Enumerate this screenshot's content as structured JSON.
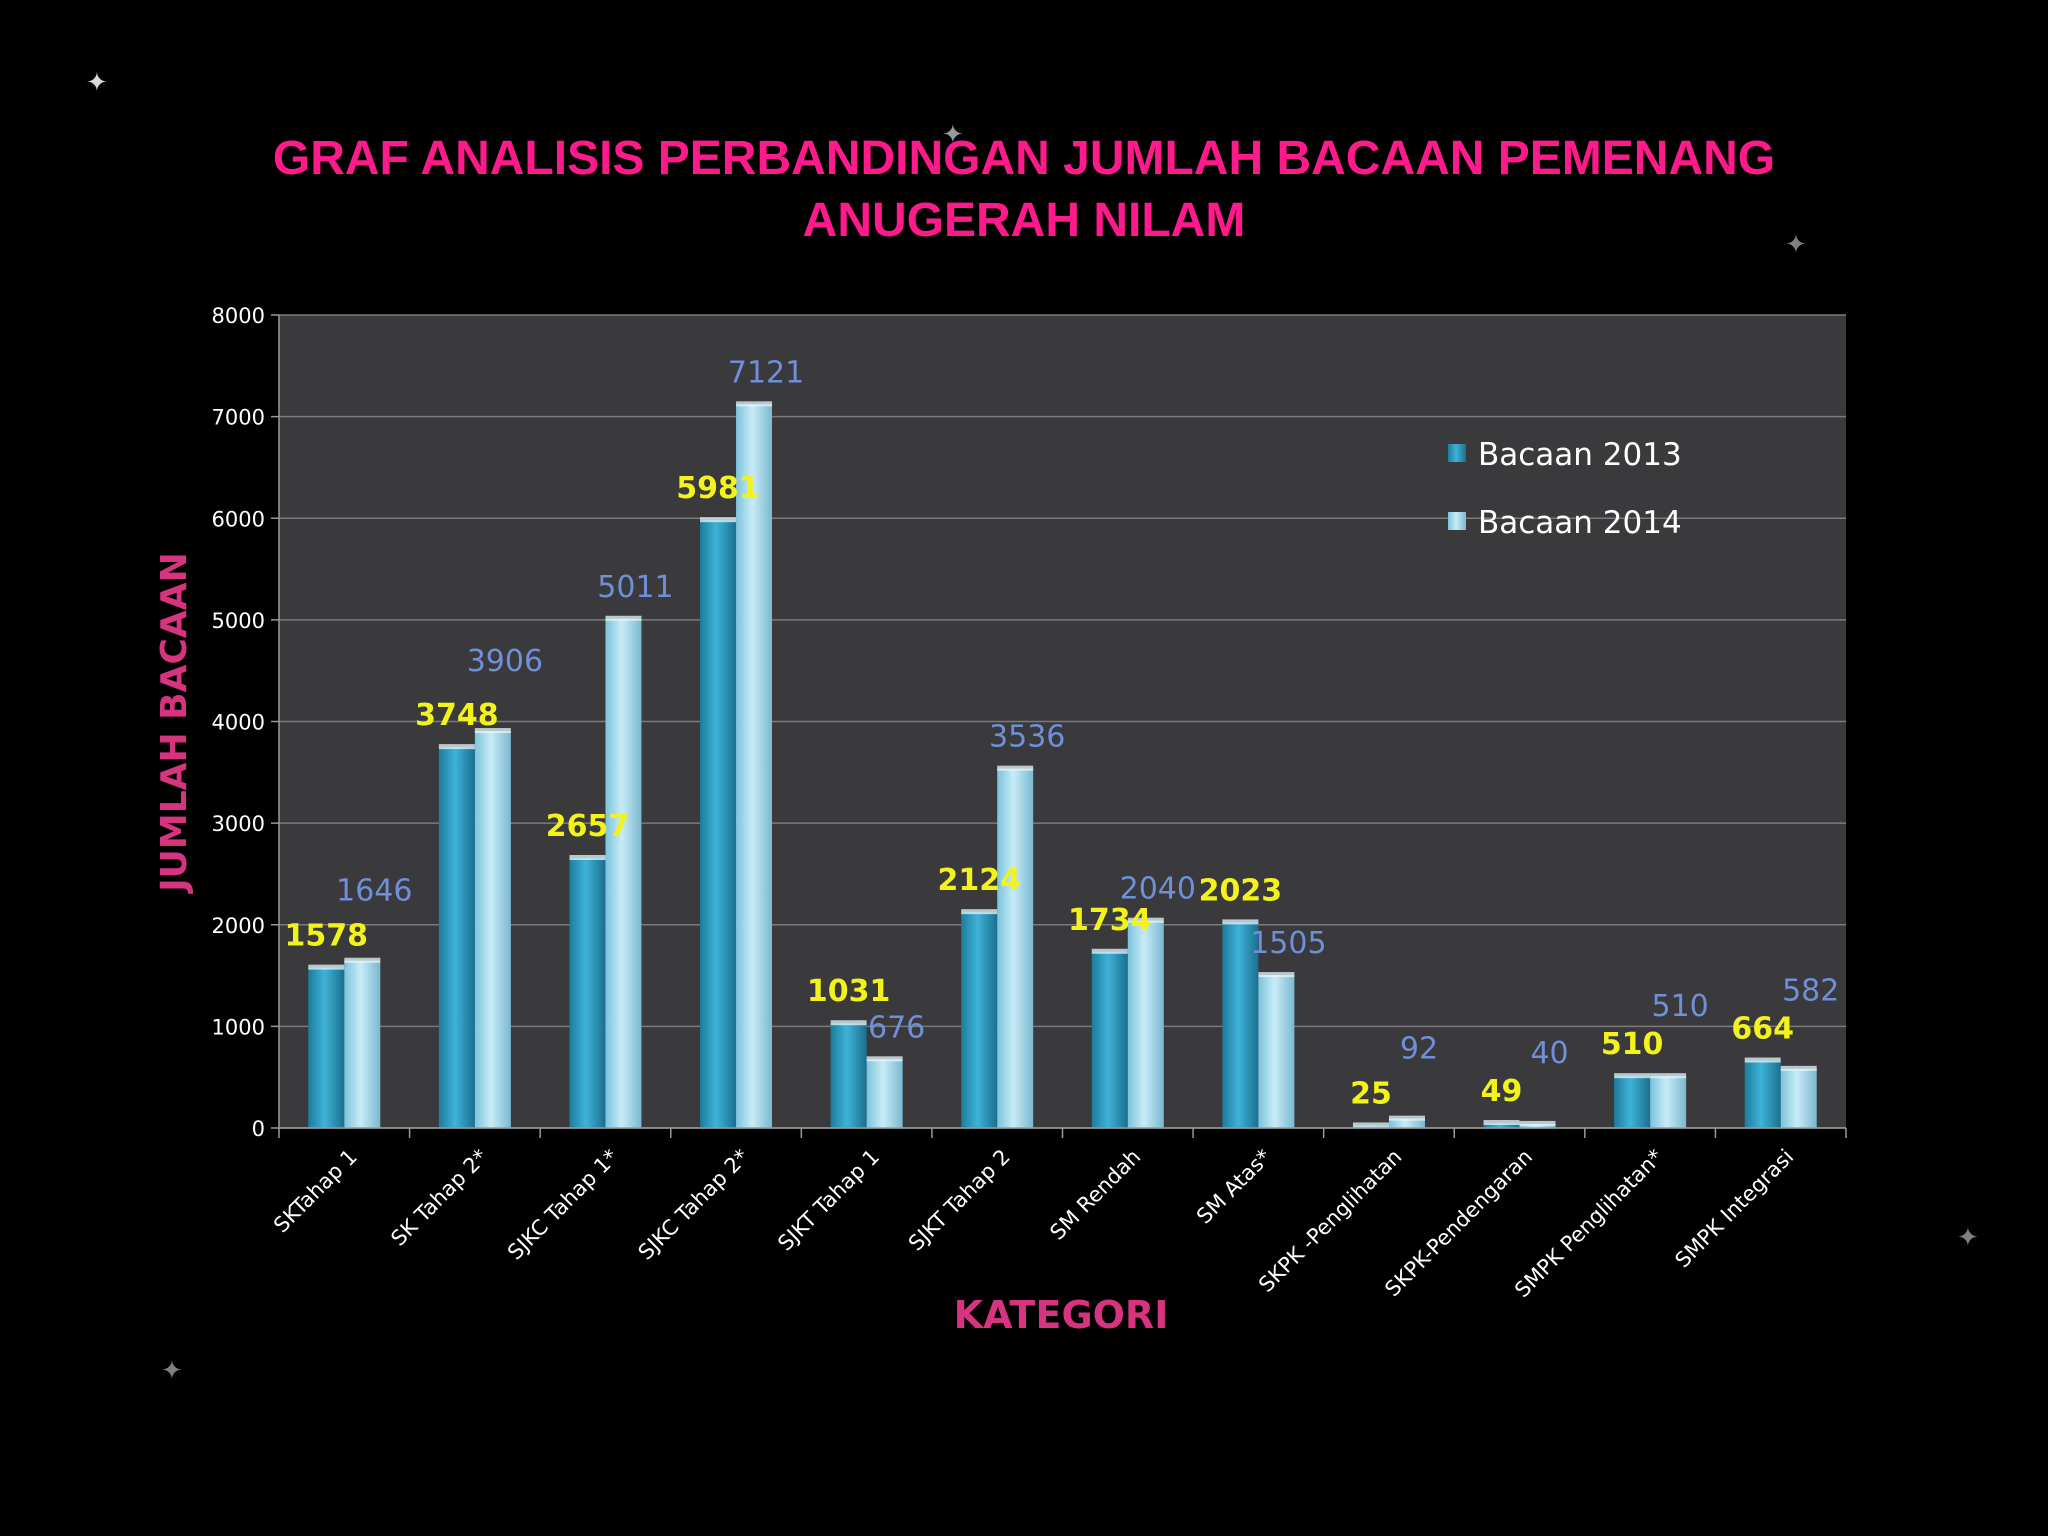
{
  "slide": {
    "title_line1": "GRAF ANALISIS PERBANDINGAN JUMLAH BACAAN PEMENANG",
    "title_line2": "ANUGERAH NILAM"
  },
  "colors": {
    "title": "#ff1a8c",
    "axis_title": "#d6347f",
    "series_2013": "#2e9cc0",
    "series_2014": "#a8dbec",
    "label_2013": "#f2f21c",
    "label_2014": "#6f8fd8",
    "plot_bg": "#3a3a3c"
  },
  "chart_data": {
    "type": "bar",
    "categories": [
      "SKTahap 1",
      "SK Tahap 2*",
      "SJKC Tahap 1*",
      "SJKC Tahap 2*",
      "SJKT Tahap 1",
      "SJKT Tahap 2",
      "SM Rendah",
      "SM Atas*",
      "SKPK -Penglihatan",
      "SKPK-Pendengaran",
      "SMPK Penglihatan*",
      "SMPK Integrasi"
    ],
    "series": [
      {
        "name": "Bacaan 2013",
        "values": [
          1578,
          3748,
          2657,
          5981,
          1031,
          2124,
          1734,
          2023,
          25,
          49,
          510,
          664
        ]
      },
      {
        "name": "Bacaan 2014",
        "values": [
          1646,
          3906,
          5011,
          7121,
          676,
          3536,
          2040,
          1505,
          92,
          40,
          510,
          582
        ]
      }
    ],
    "xlabel": "KATEGORI",
    "ylabel": "JUMLAH BACAAN",
    "ylim": [
      0,
      8000
    ],
    "yticks": [
      0,
      1000,
      2000,
      3000,
      4000,
      5000,
      6000,
      7000,
      8000
    ],
    "grid": true,
    "legend": "top-right",
    "data_labels": true
  }
}
